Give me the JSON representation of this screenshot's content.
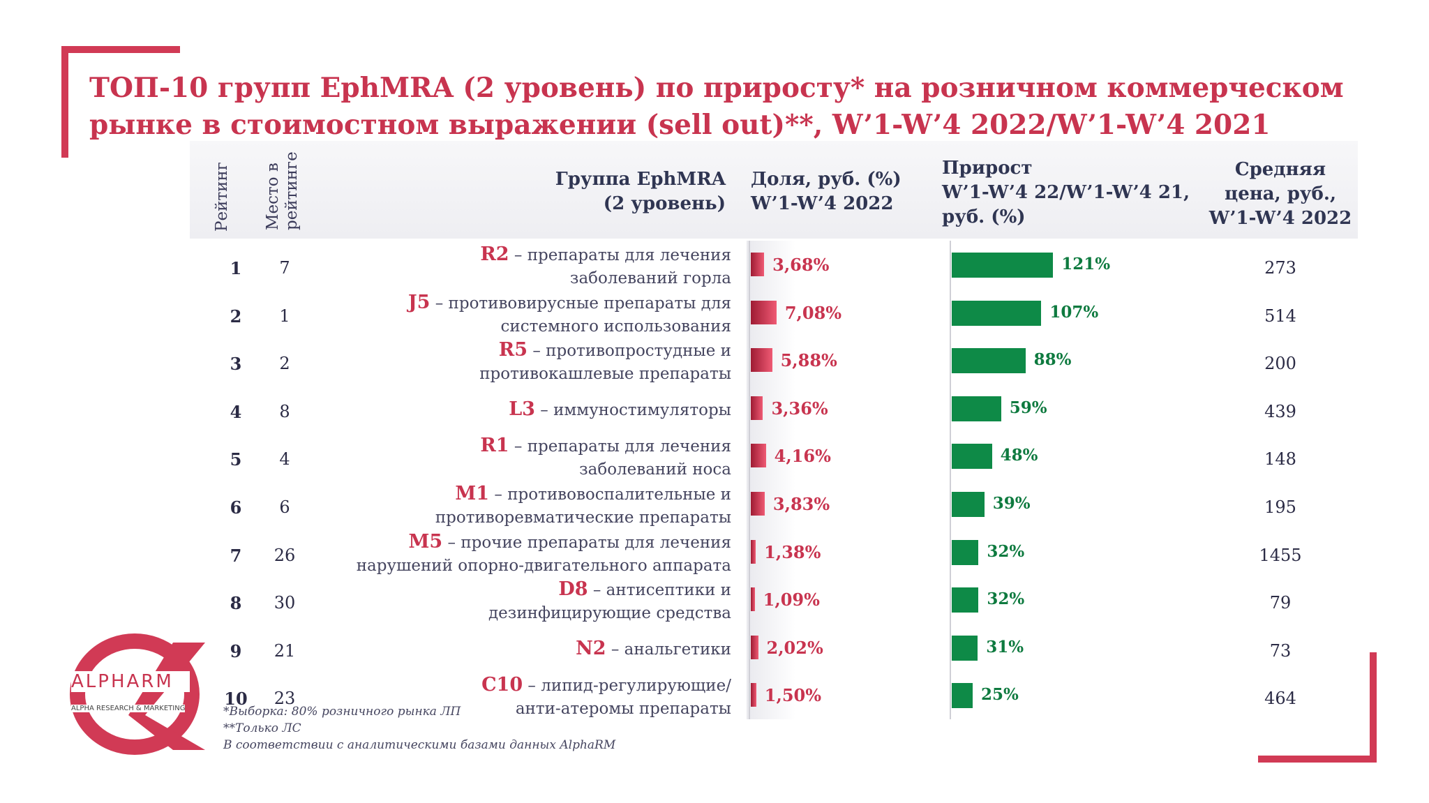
{
  "title": "ТОП-10 групп EphMRA (2 уровень) по приросту* на розничном коммерческом рынке в стоимостном выражении (sell out)**, W’1-W’4 2022/W’1-W’4 2021",
  "headers": {
    "rating": "Рейтинг",
    "place": "Место в рейтинге",
    "group_line1": "Группа EphMRA",
    "group_line2": "(2 уровень)",
    "share_line1": "Доля, руб. (%)",
    "share_line2": "W’1-W’4 2022",
    "growth_line1": "Прирост",
    "growth_line2": "W’1-W’4 22/W’1-W’4 21,",
    "growth_line3": "руб. (%)",
    "price_line1": "Средняя",
    "price_line2": "цена, руб.,",
    "price_line3": "W’1-W’4 2022"
  },
  "colors": {
    "accent": "#c8344f",
    "growth": "#0e8a47",
    "text": "#3b3b5a"
  },
  "chart_data": {
    "type": "table",
    "columns": [
      "Рейтинг",
      "Место в рейтинге",
      "Группа EphMRA (2 уровень)",
      "Доля, руб. (%) W’1-W’4 2022",
      "Прирост W’1-W’4 22/W’1-W’4 21, руб. (%)",
      "Средняя цена, руб., W’1-W’4 2022"
    ],
    "share_unit": "%",
    "growth_unit": "%",
    "rows": [
      {
        "rank": "1",
        "place": "7",
        "code": "R2",
        "desc1": " – препараты для лечения",
        "desc2": "заболеваний горла",
        "share": 3.68,
        "share_label": "3,68%",
        "growth": 121,
        "growth_label": "121%",
        "price": "273"
      },
      {
        "rank": "2",
        "place": "1",
        "code": "J5",
        "desc1": " – противовирусные препараты для",
        "desc2": "системного использования",
        "share": 7.08,
        "share_label": "7,08%",
        "growth": 107,
        "growth_label": "107%",
        "price": "514"
      },
      {
        "rank": "3",
        "place": "2",
        "code": "R5",
        "desc1": " – противопростудные и",
        "desc2": "противокашлевые препараты",
        "share": 5.88,
        "share_label": "5,88%",
        "growth": 88,
        "growth_label": "88%",
        "price": "200"
      },
      {
        "rank": "4",
        "place": "8",
        "code": "L3",
        "desc1": " – иммуностимуляторы",
        "desc2": "",
        "share": 3.36,
        "share_label": "3,36%",
        "growth": 59,
        "growth_label": "59%",
        "price": "439"
      },
      {
        "rank": "5",
        "place": "4",
        "code": "R1",
        "desc1": " – препараты для лечения",
        "desc2": "заболеваний носа",
        "share": 4.16,
        "share_label": "4,16%",
        "growth": 48,
        "growth_label": "48%",
        "price": "148"
      },
      {
        "rank": "6",
        "place": "6",
        "code": "M1",
        "desc1": " – противовоспалительные и",
        "desc2": "противоревматические препараты",
        "share": 3.83,
        "share_label": "3,83%",
        "growth": 39,
        "growth_label": "39%",
        "price": "195"
      },
      {
        "rank": "7",
        "place": "26",
        "code": "M5",
        "desc1": " – прочие препараты для лечения",
        "desc2": "нарушений опорно-двигательного аппарата",
        "share": 1.38,
        "share_label": "1,38%",
        "growth": 32,
        "growth_label": "32%",
        "price": "1455"
      },
      {
        "rank": "8",
        "place": "30",
        "code": "D8",
        "desc1": " – антисептики и",
        "desc2": "дезинфицирующие средства",
        "share": 1.09,
        "share_label": "1,09%",
        "growth": 32,
        "growth_label": "32%",
        "price": "79"
      },
      {
        "rank": "9",
        "place": "21",
        "code": "N2",
        "desc1": " – анальгетики",
        "desc2": "",
        "share": 2.02,
        "share_label": "2,02%",
        "growth": 31,
        "growth_label": "31%",
        "price": "73"
      },
      {
        "rank": "10",
        "place": "23",
        "code": "C10",
        "desc1": " – липид-регулирующие/",
        "desc2": "анти-атеромы препараты",
        "share": 1.5,
        "share_label": "1,50%",
        "growth": 25,
        "growth_label": "25%",
        "price": "464"
      }
    ]
  },
  "logo": {
    "name": "ALPHARM",
    "subtitle": "ALPHA RESEARCH & MARKETING"
  },
  "notes": [
    "*Выборка: 80% розничного рынка ЛП",
    "**Только ЛС",
    "В соответствии с аналитическими базами данных AlphaRM"
  ]
}
